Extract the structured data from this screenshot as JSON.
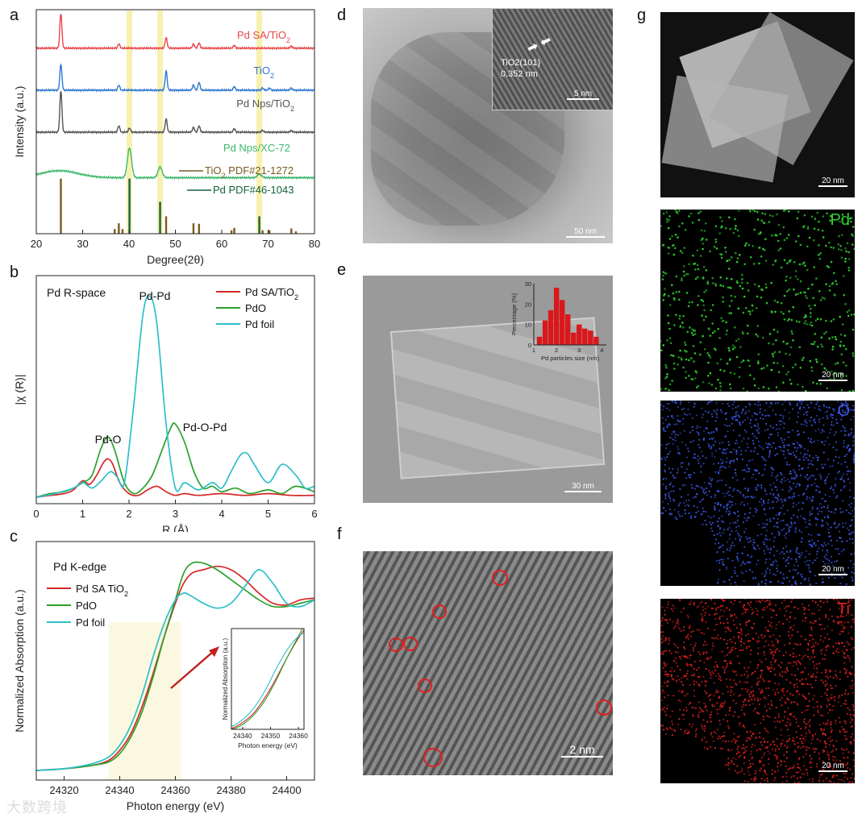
{
  "panels": {
    "a": "a",
    "b": "b",
    "c": "c",
    "d": "d",
    "e": "e",
    "f": "f",
    "g": "g"
  },
  "chart_data": [
    {
      "id": "a",
      "type": "line",
      "xlabel": "Degree(2θ)",
      "ylabel": "Intensity (a.u.)",
      "xlim": [
        20,
        80
      ],
      "xticks": [
        20,
        30,
        40,
        50,
        60,
        70,
        80
      ],
      "highlight_bands": [
        40.1,
        46.7,
        68.1
      ],
      "series": [
        {
          "name": "Pd SA/TiO2",
          "color": "#e8474b",
          "offset": 5.3,
          "peaks": [
            [
              25.3,
              1.0
            ],
            [
              37.8,
              0.12
            ],
            [
              48.0,
              0.3
            ],
            [
              53.9,
              0.12
            ],
            [
              55.1,
              0.15
            ],
            [
              62.7,
              0.08
            ],
            [
              75.0,
              0.06
            ]
          ]
        },
        {
          "name": "TiO2",
          "color": "#2f78d0",
          "offset": 4.1,
          "peaks": [
            [
              25.3,
              0.75
            ],
            [
              37.8,
              0.14
            ],
            [
              48.0,
              0.55
            ],
            [
              53.9,
              0.15
            ],
            [
              55.1,
              0.22
            ],
            [
              62.7,
              0.1
            ],
            [
              68.8,
              0.06
            ],
            [
              70.3,
              0.06
            ],
            [
              75.0,
              0.06
            ]
          ]
        },
        {
          "name": "Pd Nps/TiO2",
          "color": "#555555",
          "offset": 2.9,
          "peaks": [
            [
              25.3,
              1.2
            ],
            [
              37.8,
              0.18
            ],
            [
              40.1,
              0.12
            ],
            [
              48.0,
              0.38
            ],
            [
              53.9,
              0.14
            ],
            [
              55.1,
              0.18
            ],
            [
              62.7,
              0.1
            ],
            [
              68.8,
              0.05
            ],
            [
              75.0,
              0.05
            ]
          ]
        },
        {
          "name": "Pd Nps/XC-72",
          "color": "#3cb86a",
          "offset": 1.6,
          "peaks": [
            [
              25.0,
              0.2
            ],
            [
              40.1,
              0.85
            ],
            [
              46.7,
              0.3
            ],
            [
              68.1,
              0.1
            ]
          ]
        }
      ],
      "reference_series": [
        {
          "name": "TiO2 PDF#21-1272",
          "color": "#7a5a22",
          "sticks": [
            [
              25.3,
              0.95
            ],
            [
              36.9,
              0.08
            ],
            [
              37.8,
              0.18
            ],
            [
              38.6,
              0.08
            ],
            [
              48.0,
              0.3
            ],
            [
              53.9,
              0.18
            ],
            [
              55.1,
              0.17
            ],
            [
              62.1,
              0.06
            ],
            [
              62.7,
              0.1
            ],
            [
              68.8,
              0.06
            ],
            [
              70.3,
              0.06
            ],
            [
              75.0,
              0.09
            ],
            [
              76.0,
              0.04
            ]
          ]
        },
        {
          "name": "Pd PDF#46-1043",
          "color": "#14613c",
          "sticks": [
            [
              40.1,
              0.95
            ],
            [
              46.7,
              0.55
            ],
            [
              68.1,
              0.3
            ]
          ]
        }
      ]
    },
    {
      "id": "b",
      "type": "line",
      "title": "Pd R-space",
      "xlabel": "R (Å)",
      "ylabel": "|χ (R)|",
      "xlim": [
        0,
        6
      ],
      "xticks": [
        0,
        1,
        2,
        3,
        4,
        5,
        6
      ],
      "annotations": [
        "Pd-Pd",
        "Pd-O",
        "Pd-O-Pd"
      ],
      "series": [
        {
          "name": "Pd SA/TiO2",
          "color": "#d62728",
          "x": [
            0,
            0.3,
            0.6,
            0.8,
            1.0,
            1.15,
            1.3,
            1.45,
            1.55,
            1.65,
            1.8,
            2.0,
            2.2,
            2.4,
            2.6,
            2.8,
            3.0,
            3.2,
            3.5,
            4.0,
            4.5,
            5.0,
            5.5,
            6.0
          ],
          "y": [
            0.0,
            0.01,
            0.02,
            0.04,
            0.09,
            0.07,
            0.12,
            0.19,
            0.21,
            0.18,
            0.08,
            0.02,
            0.01,
            0.04,
            0.06,
            0.03,
            0.01,
            0.02,
            0.01,
            0.02,
            0.01,
            0.02,
            0.01,
            0.01
          ]
        },
        {
          "name": "PdO",
          "color": "#2ca02c",
          "x": [
            0,
            0.3,
            0.6,
            0.8,
            1.0,
            1.2,
            1.4,
            1.55,
            1.7,
            1.9,
            2.1,
            2.3,
            2.5,
            2.7,
            2.9,
            3.0,
            3.2,
            3.4,
            3.6,
            3.8,
            4.0,
            4.3,
            4.6,
            5.0,
            5.3,
            5.6,
            6.0
          ],
          "y": [
            0.0,
            0.02,
            0.03,
            0.05,
            0.08,
            0.12,
            0.27,
            0.33,
            0.25,
            0.08,
            0.02,
            0.05,
            0.12,
            0.25,
            0.38,
            0.4,
            0.3,
            0.14,
            0.05,
            0.06,
            0.03,
            0.05,
            0.02,
            0.04,
            0.02,
            0.06,
            0.03
          ]
        },
        {
          "name": "Pd foil",
          "color": "#2cc0c8",
          "x": [
            0,
            0.4,
            0.8,
            1.0,
            1.2,
            1.4,
            1.6,
            1.75,
            1.9,
            2.1,
            2.3,
            2.45,
            2.6,
            2.8,
            3.0,
            3.2,
            3.5,
            3.8,
            4.0,
            4.2,
            4.4,
            4.55,
            4.7,
            5.0,
            5.3,
            5.6,
            5.8,
            6.0
          ],
          "y": [
            0.0,
            0.02,
            0.05,
            0.08,
            0.05,
            0.09,
            0.14,
            0.11,
            0.08,
            0.5,
            1.0,
            1.1,
            0.95,
            0.4,
            0.05,
            0.08,
            0.04,
            0.08,
            0.05,
            0.14,
            0.23,
            0.24,
            0.18,
            0.08,
            0.18,
            0.12,
            0.05,
            0.06
          ]
        }
      ]
    },
    {
      "id": "c",
      "type": "line",
      "title": "Pd K-edge",
      "xlabel": "Photon energy (eV)",
      "ylabel": "Normalized Absorption (a.u.)",
      "xlim": [
        24310,
        24410
      ],
      "xticks": [
        24320,
        24340,
        24360,
        24380,
        24400
      ],
      "series": [
        {
          "name": "Pd SA TiO2",
          "color": "#d62728",
          "x": [
            24310,
            24320,
            24330,
            24336,
            24340,
            24344,
            24348,
            24352,
            24356,
            24360,
            24363,
            24366,
            24370,
            24375,
            24380,
            24385,
            24390,
            24395,
            24400,
            24405,
            24410
          ],
          "y": [
            0.0,
            0.01,
            0.03,
            0.06,
            0.12,
            0.22,
            0.38,
            0.58,
            0.8,
            1.0,
            1.12,
            1.18,
            1.2,
            1.22,
            1.2,
            1.14,
            1.06,
            1.0,
            0.99,
            1.02,
            1.03
          ]
        },
        {
          "name": "PdO",
          "color": "#2ca02c",
          "x": [
            24310,
            24320,
            24330,
            24336,
            24340,
            24344,
            24348,
            24352,
            24356,
            24360,
            24363,
            24366,
            24370,
            24375,
            24380,
            24385,
            24390,
            24395,
            24400,
            24405,
            24410
          ],
          "y": [
            0.0,
            0.01,
            0.03,
            0.05,
            0.1,
            0.2,
            0.35,
            0.56,
            0.8,
            1.02,
            1.18,
            1.24,
            1.24,
            1.2,
            1.14,
            1.08,
            1.02,
            0.98,
            0.98,
            1.0,
            1.02
          ]
        },
        {
          "name": "Pd foil",
          "color": "#2cc0c8",
          "x": [
            24310,
            24320,
            24330,
            24336,
            24340,
            24344,
            24348,
            24352,
            24356,
            24360,
            24363,
            24366,
            24370,
            24375,
            24380,
            24385,
            24390,
            24395,
            24400,
            24405,
            24410
          ],
          "y": [
            0.0,
            0.01,
            0.04,
            0.08,
            0.15,
            0.27,
            0.45,
            0.68,
            0.88,
            1.02,
            1.06,
            1.04,
            1.0,
            0.97,
            1.0,
            1.1,
            1.2,
            1.12,
            1.0,
            0.98,
            1.02
          ]
        }
      ],
      "inset": {
        "xlabel": "Photon energy (eV)",
        "ylabel": "Normalized Absorption (a.u.)",
        "xlim": [
          24336,
          24362
        ],
        "xticks": [
          24340,
          24350,
          24360
        ]
      }
    },
    {
      "id": "e-inset",
      "type": "bar",
      "xlabel": "Pd particles size (nm)",
      "ylabel": "Percentage (%)",
      "ylim": [
        0,
        30
      ],
      "yticks": [
        0,
        10,
        20,
        30
      ],
      "xticks": [
        1,
        2,
        3,
        4
      ],
      "categories": [
        1.25,
        1.5,
        1.75,
        2.0,
        2.25,
        2.5,
        2.75,
        3.0,
        3.25,
        3.5,
        3.75
      ],
      "values": [
        4,
        12,
        17,
        28,
        22,
        15,
        6,
        10,
        8,
        7,
        4
      ]
    }
  ],
  "micrographs": {
    "d": {
      "scale_bar": "50 nm",
      "inset_label": "TiO2(101)",
      "inset_spacing": "0.352 nm",
      "inset_scale_bar": "5 nm"
    },
    "e": {
      "scale_bar": "30 nm"
    },
    "f": {
      "scale_bar": "2 nm"
    },
    "g": [
      {
        "element": "",
        "color": "#ffffff",
        "scale_bar": "20 nm"
      },
      {
        "element": "Pd",
        "color": "#2fd12f",
        "scale_bar": "20 nm"
      },
      {
        "element": "O",
        "color": "#3a58e8",
        "scale_bar": "20 nm"
      },
      {
        "element": "Ti",
        "color": "#e02020",
        "scale_bar": "20 nm"
      }
    ]
  },
  "watermark": "大数跨境"
}
